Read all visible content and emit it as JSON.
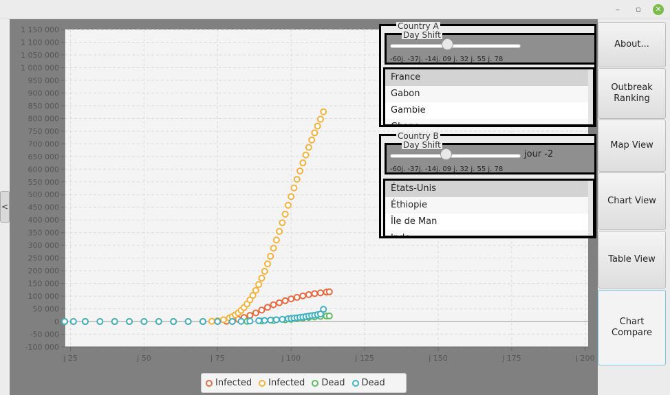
{
  "window": {
    "min_label": "–",
    "max_label": "▫",
    "close_label": "✕"
  },
  "left_toggle": {
    "label": "<"
  },
  "sidebar": {
    "about": "About...",
    "outbreak": "Outbreak\nRanking",
    "map": "Map View",
    "chart": "Chart View",
    "table": "Table View",
    "compare": "Chart Compare"
  },
  "country_a": {
    "title": "Country A",
    "dayshift_title": "Day Shift",
    "slider_value": 0,
    "slider_min": -60,
    "slider_max": 78,
    "slider_labels": "-60j. -37j. -14j. 09 j. 32 j. 55 j. 78",
    "countries": [
      "France",
      "Gabon",
      "Gambie",
      "Ghana"
    ]
  },
  "country_b": {
    "title": "Country B",
    "dayshift_title": "Day Shift",
    "slider_value": -2,
    "slider_min": -60,
    "slider_max": 78,
    "slider_value_label": "jour -2",
    "slider_labels": "-60j. -37j. -14j. 09 j. 32 j. 55 j. 78",
    "countries": [
      "États-Unis",
      "Éthiopie",
      "Île de Man",
      "Inde"
    ]
  },
  "legend": [
    {
      "label": "Infected",
      "color": "#e8683e"
    },
    {
      "label": "Infected",
      "color": "#f4b13a"
    },
    {
      "label": "Dead",
      "color": "#5fba61"
    },
    {
      "label": "Dead",
      "color": "#3fb0c4"
    }
  ],
  "chart_data": {
    "type": "scatter",
    "title": "",
    "xlabel": "",
    "ylabel": "",
    "xlim": [
      23,
      201
    ],
    "ylim": [
      -100000,
      1150000
    ],
    "x_ticks": [
      25,
      50,
      75,
      100,
      125,
      150,
      175,
      200
    ],
    "x_tick_labels": [
      "j 25",
      "j 50",
      "j 75",
      "j 100",
      "j 125",
      "j 150",
      "j 175",
      "j 200"
    ],
    "y_ticks": [
      -100000,
      -50000,
      0,
      50000,
      100000,
      150000,
      200000,
      250000,
      300000,
      350000,
      400000,
      450000,
      500000,
      550000,
      600000,
      650000,
      700000,
      750000,
      800000,
      850000,
      900000,
      950000,
      1000000,
      1050000,
      1100000,
      1150000
    ],
    "y_tick_labels": [
      "-100 000",
      "-50 000",
      "0",
      "50 000",
      "100 000",
      "150 000",
      "200 000",
      "250 000",
      "300 000",
      "350 000",
      "400 000",
      "450 000",
      "500 000",
      "550 000",
      "600 000",
      "650 000",
      "700 000",
      "750 000",
      "800 000",
      "850 000",
      "900 000",
      "950 000",
      "1 000 000",
      "1 050 000",
      "1 100 000",
      "1 150 000"
    ],
    "grid": true,
    "series": [
      {
        "name": "Infected",
        "country": "A",
        "color": "#e8683e",
        "x": [
          23,
          26,
          30,
          35,
          40,
          45,
          50,
          55,
          60,
          65,
          70,
          75,
          78,
          80,
          82,
          84,
          86,
          88,
          90,
          92,
          94,
          96,
          98,
          100,
          102,
          104,
          106,
          108,
          110,
          112,
          113
        ],
        "y": [
          0,
          0,
          0,
          0,
          0,
          0,
          0,
          0,
          0,
          0,
          0,
          200,
          1000,
          4000,
          9000,
          16000,
          24000,
          34000,
          45000,
          56000,
          66000,
          74000,
          82000,
          89000,
          95000,
          101000,
          106000,
          110000,
          113000,
          116000,
          117000
        ]
      },
      {
        "name": "Infected",
        "country": "B",
        "color": "#f4b13a",
        "x": [
          23,
          26,
          30,
          35,
          40,
          45,
          50,
          55,
          60,
          65,
          70,
          73,
          75,
          77,
          79,
          80,
          81,
          82,
          83,
          84,
          85,
          86,
          87,
          88,
          89,
          90,
          91,
          92,
          93,
          94,
          95,
          96,
          97,
          98,
          99,
          100,
          101,
          102,
          103,
          104,
          105,
          106,
          107,
          108,
          109,
          110,
          111
        ],
        "y": [
          0,
          0,
          0,
          0,
          0,
          0,
          0,
          0,
          0,
          0,
          0,
          1000,
          3000,
          7000,
          14000,
          19000,
          26000,
          34000,
          44000,
          55000,
          69000,
          85000,
          103000,
          123000,
          146000,
          171000,
          198000,
          227000,
          257000,
          289000,
          321000,
          355000,
          389000,
          423000,
          458000,
          492000,
          526000,
          560000,
          593000,
          625000,
          656000,
          686000,
          715000,
          743000,
          770000,
          797000,
          826000
        ]
      },
      {
        "name": "Dead",
        "country": "A",
        "color": "#5fba61",
        "x": [
          23,
          30,
          40,
          50,
          60,
          70,
          80,
          85,
          90,
          94,
          98,
          100,
          102,
          104,
          106,
          108,
          110,
          112,
          113
        ],
        "y": [
          0,
          0,
          0,
          0,
          0,
          0,
          200,
          800,
          2000,
          4000,
          6500,
          8500,
          11000,
          13500,
          16000,
          18000,
          20000,
          21500,
          22000
        ]
      },
      {
        "name": "Dead",
        "country": "B",
        "color": "#3fb0c4",
        "x": [
          23,
          26,
          30,
          35,
          40,
          45,
          50,
          55,
          60,
          65,
          70,
          75,
          80,
          83,
          86,
          89,
          91,
          93,
          95,
          97,
          99,
          100,
          101,
          102,
          103,
          104,
          105,
          106,
          107,
          108,
          109,
          110,
          111
        ],
        "y": [
          0,
          0,
          0,
          0,
          0,
          0,
          0,
          0,
          0,
          0,
          0,
          0,
          200,
          800,
          1700,
          3000,
          4200,
          5500,
          7000,
          8800,
          10800,
          12000,
          13300,
          14700,
          16200,
          17800,
          19500,
          21300,
          23200,
          25200,
          27300,
          29500,
          48000
        ]
      }
    ]
  }
}
